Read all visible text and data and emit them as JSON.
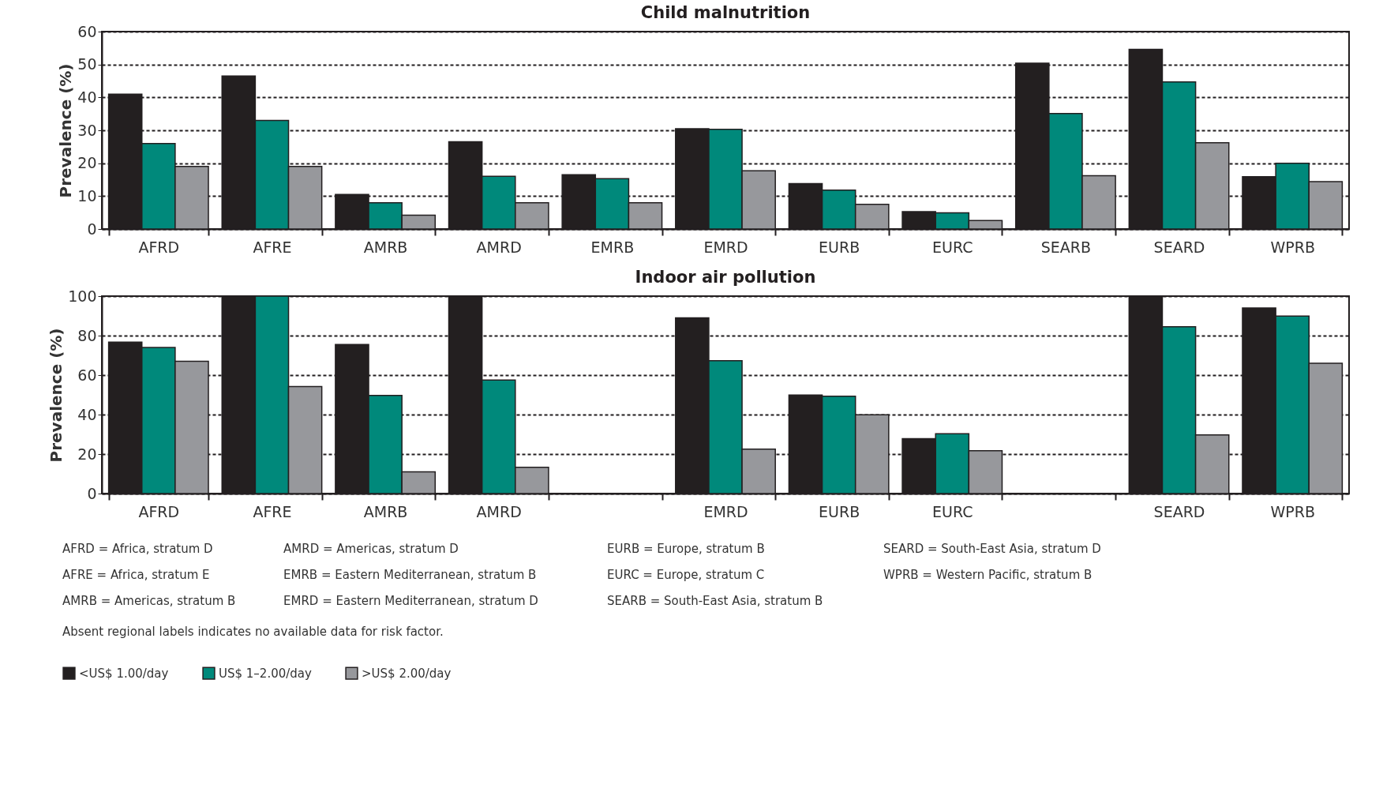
{
  "chart_data": [
    {
      "type": "bar",
      "title": "Child malnutrition",
      "ylabel": "Prevalence (%)",
      "categories": [
        "AFRD",
        "AFRE",
        "AMRB",
        "AMRD",
        "EMRB",
        "EMRD",
        "EURB",
        "EURC",
        "SEARB",
        "SEARD",
        "WPRB"
      ],
      "series": [
        {
          "name": "<US$ 1.00/day",
          "color": "#231f20",
          "values": [
            41,
            46.5,
            10.5,
            26.5,
            16.5,
            30.5,
            13.8,
            5.3,
            50.4,
            54.6,
            15.9
          ]
        },
        {
          "name": "US$ 1–2.00/day",
          "color": "#00897b",
          "values": [
            26,
            33,
            8,
            16,
            15.3,
            30.3,
            11.8,
            4.9,
            35.1,
            44.7,
            20
          ]
        },
        {
          "name": ">US$ 2.00/day",
          "color": "#97989c",
          "values": [
            19,
            19,
            4.2,
            8,
            8,
            17.7,
            7.5,
            2.6,
            16.2,
            26.2,
            14.4
          ]
        }
      ],
      "ylim": [
        0,
        60
      ],
      "yticks": [
        0,
        10,
        20,
        30,
        40,
        50,
        60
      ],
      "grid": "y",
      "legend": "bottom left"
    },
    {
      "type": "bar",
      "title": "Indoor air pollution",
      "ylabel": "Prevalence (%)",
      "categories": [
        "AFRD",
        "AFRE",
        "AMRB",
        "AMRD",
        null,
        "EMRD",
        "EURB",
        "EURC",
        null,
        "SEARD",
        "WPRB"
      ],
      "series": [
        {
          "color": "#231f20",
          "values": [
            76.7,
            100,
            75.5,
            100,
            null,
            89,
            49.9,
            27.8,
            null,
            100,
            94
          ]
        },
        {
          "color": "#00897b",
          "values": [
            74,
            100,
            49.7,
            57.5,
            null,
            67.3,
            49.3,
            30.3,
            null,
            84.5,
            89.9
          ]
        },
        {
          "color": "#97989c",
          "values": [
            67,
            54.2,
            11,
            13.3,
            null,
            22.5,
            39.9,
            21.7,
            null,
            29.7,
            66
          ]
        }
      ],
      "ylim": [
        0,
        100
      ],
      "yticks": [
        0,
        20,
        40,
        60,
        80,
        100
      ],
      "grid": "y",
      "annotations": [
        "AFRD = Africa, stratum D",
        "AFRE = Africa, stratum E",
        "AMRB = Americas, stratum B",
        "AMRD = Americas, stratum D",
        "EMRB = Eastern Mediterranean, stratum B",
        "EMRD = Eastern Mediterranean, stratum D",
        "EURB = Europe, stratum B",
        "EURC = Europe, stratum C",
        "SEARB = South-East Asia, stratum B",
        "SEARD = South-East Asia, stratum D",
        "WPRB = Western Pacific, stratum B",
        "Absent regional labels indicates no available data for risk factor."
      ]
    }
  ]
}
